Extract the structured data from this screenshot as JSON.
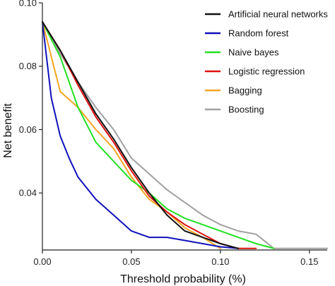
{
  "chart_data": {
    "type": "line",
    "title": "",
    "xlabel": "Threshold probability (%)",
    "ylabel": "Net benefit",
    "xlim": [
      0.0,
      0.16
    ],
    "ylim": [
      0.022,
      0.1
    ],
    "xticks": [
      0.0,
      0.05,
      0.1,
      0.15
    ],
    "xtick_labels": [
      "0.00",
      "0.05",
      "0.10",
      "0.15"
    ],
    "yticks": [
      0.04,
      0.06,
      0.08,
      0.1
    ],
    "ytick_labels": [
      "0.04",
      "0.06",
      "0.08",
      "0.10"
    ],
    "grid": false,
    "legend_position": "top-right",
    "series": [
      {
        "name": "Boosting",
        "color": "#a0a0a0",
        "x": [
          0,
          0.01,
          0.02,
          0.03,
          0.04,
          0.05,
          0.06,
          0.07,
          0.08,
          0.09,
          0.1,
          0.11,
          0.12,
          0.13,
          0.16
        ],
        "y": [
          0.094,
          0.084,
          0.075,
          0.067,
          0.06,
          0.051,
          0.046,
          0.041,
          0.037,
          0.033,
          0.03,
          0.028,
          0.027,
          0.0225,
          0.0225
        ]
      },
      {
        "name": "Bagging",
        "color": "#f5a623",
        "x": [
          0,
          0.01,
          0.02,
          0.03,
          0.04,
          0.05,
          0.06,
          0.07,
          0.08,
          0.09,
          0.1
        ],
        "y": [
          0.094,
          0.072,
          0.067,
          0.06,
          0.054,
          0.045,
          0.038,
          0.034,
          0.029,
          0.026,
          0.0225
        ]
      },
      {
        "name": "Naive bayes",
        "color": "#22e022",
        "x": [
          0,
          0.01,
          0.02,
          0.03,
          0.04,
          0.05,
          0.06,
          0.07,
          0.08,
          0.09,
          0.1,
          0.11,
          0.12,
          0.13
        ],
        "y": [
          0.094,
          0.083,
          0.067,
          0.056,
          0.05,
          0.044,
          0.04,
          0.035,
          0.032,
          0.03,
          0.028,
          0.026,
          0.024,
          0.0225
        ]
      },
      {
        "name": "Logistic regression",
        "color": "#dd1111",
        "x": [
          0,
          0.01,
          0.02,
          0.03,
          0.04,
          0.05,
          0.06,
          0.07,
          0.08,
          0.09,
          0.1,
          0.11,
          0.12
        ],
        "y": [
          0.094,
          0.085,
          0.074,
          0.064,
          0.056,
          0.047,
          0.039,
          0.034,
          0.03,
          0.027,
          0.024,
          0.0225,
          0.0225
        ]
      },
      {
        "name": "Random forest",
        "color": "#1111bb",
        "x": [
          0,
          0.005,
          0.01,
          0.015,
          0.02,
          0.03,
          0.04,
          0.05,
          0.06,
          0.07,
          0.08,
          0.09,
          0.1,
          0.11
        ],
        "y": [
          0.094,
          0.07,
          0.058,
          0.051,
          0.045,
          0.038,
          0.033,
          0.028,
          0.026,
          0.026,
          0.025,
          0.024,
          0.023,
          0.0225
        ]
      },
      {
        "name": "Artificial neural networks",
        "color": "#111111",
        "x": [
          0,
          0.01,
          0.02,
          0.03,
          0.04,
          0.05,
          0.06,
          0.07,
          0.08,
          0.09,
          0.1,
          0.11
        ],
        "y": [
          0.094,
          0.085,
          0.075,
          0.065,
          0.057,
          0.048,
          0.04,
          0.033,
          0.028,
          0.026,
          0.024,
          0.0225
        ]
      }
    ],
    "legend_order": [
      "Artificial neural networks",
      "Random forest",
      "Naive bayes",
      "Logistic regression",
      "Bagging",
      "Boosting"
    ]
  }
}
